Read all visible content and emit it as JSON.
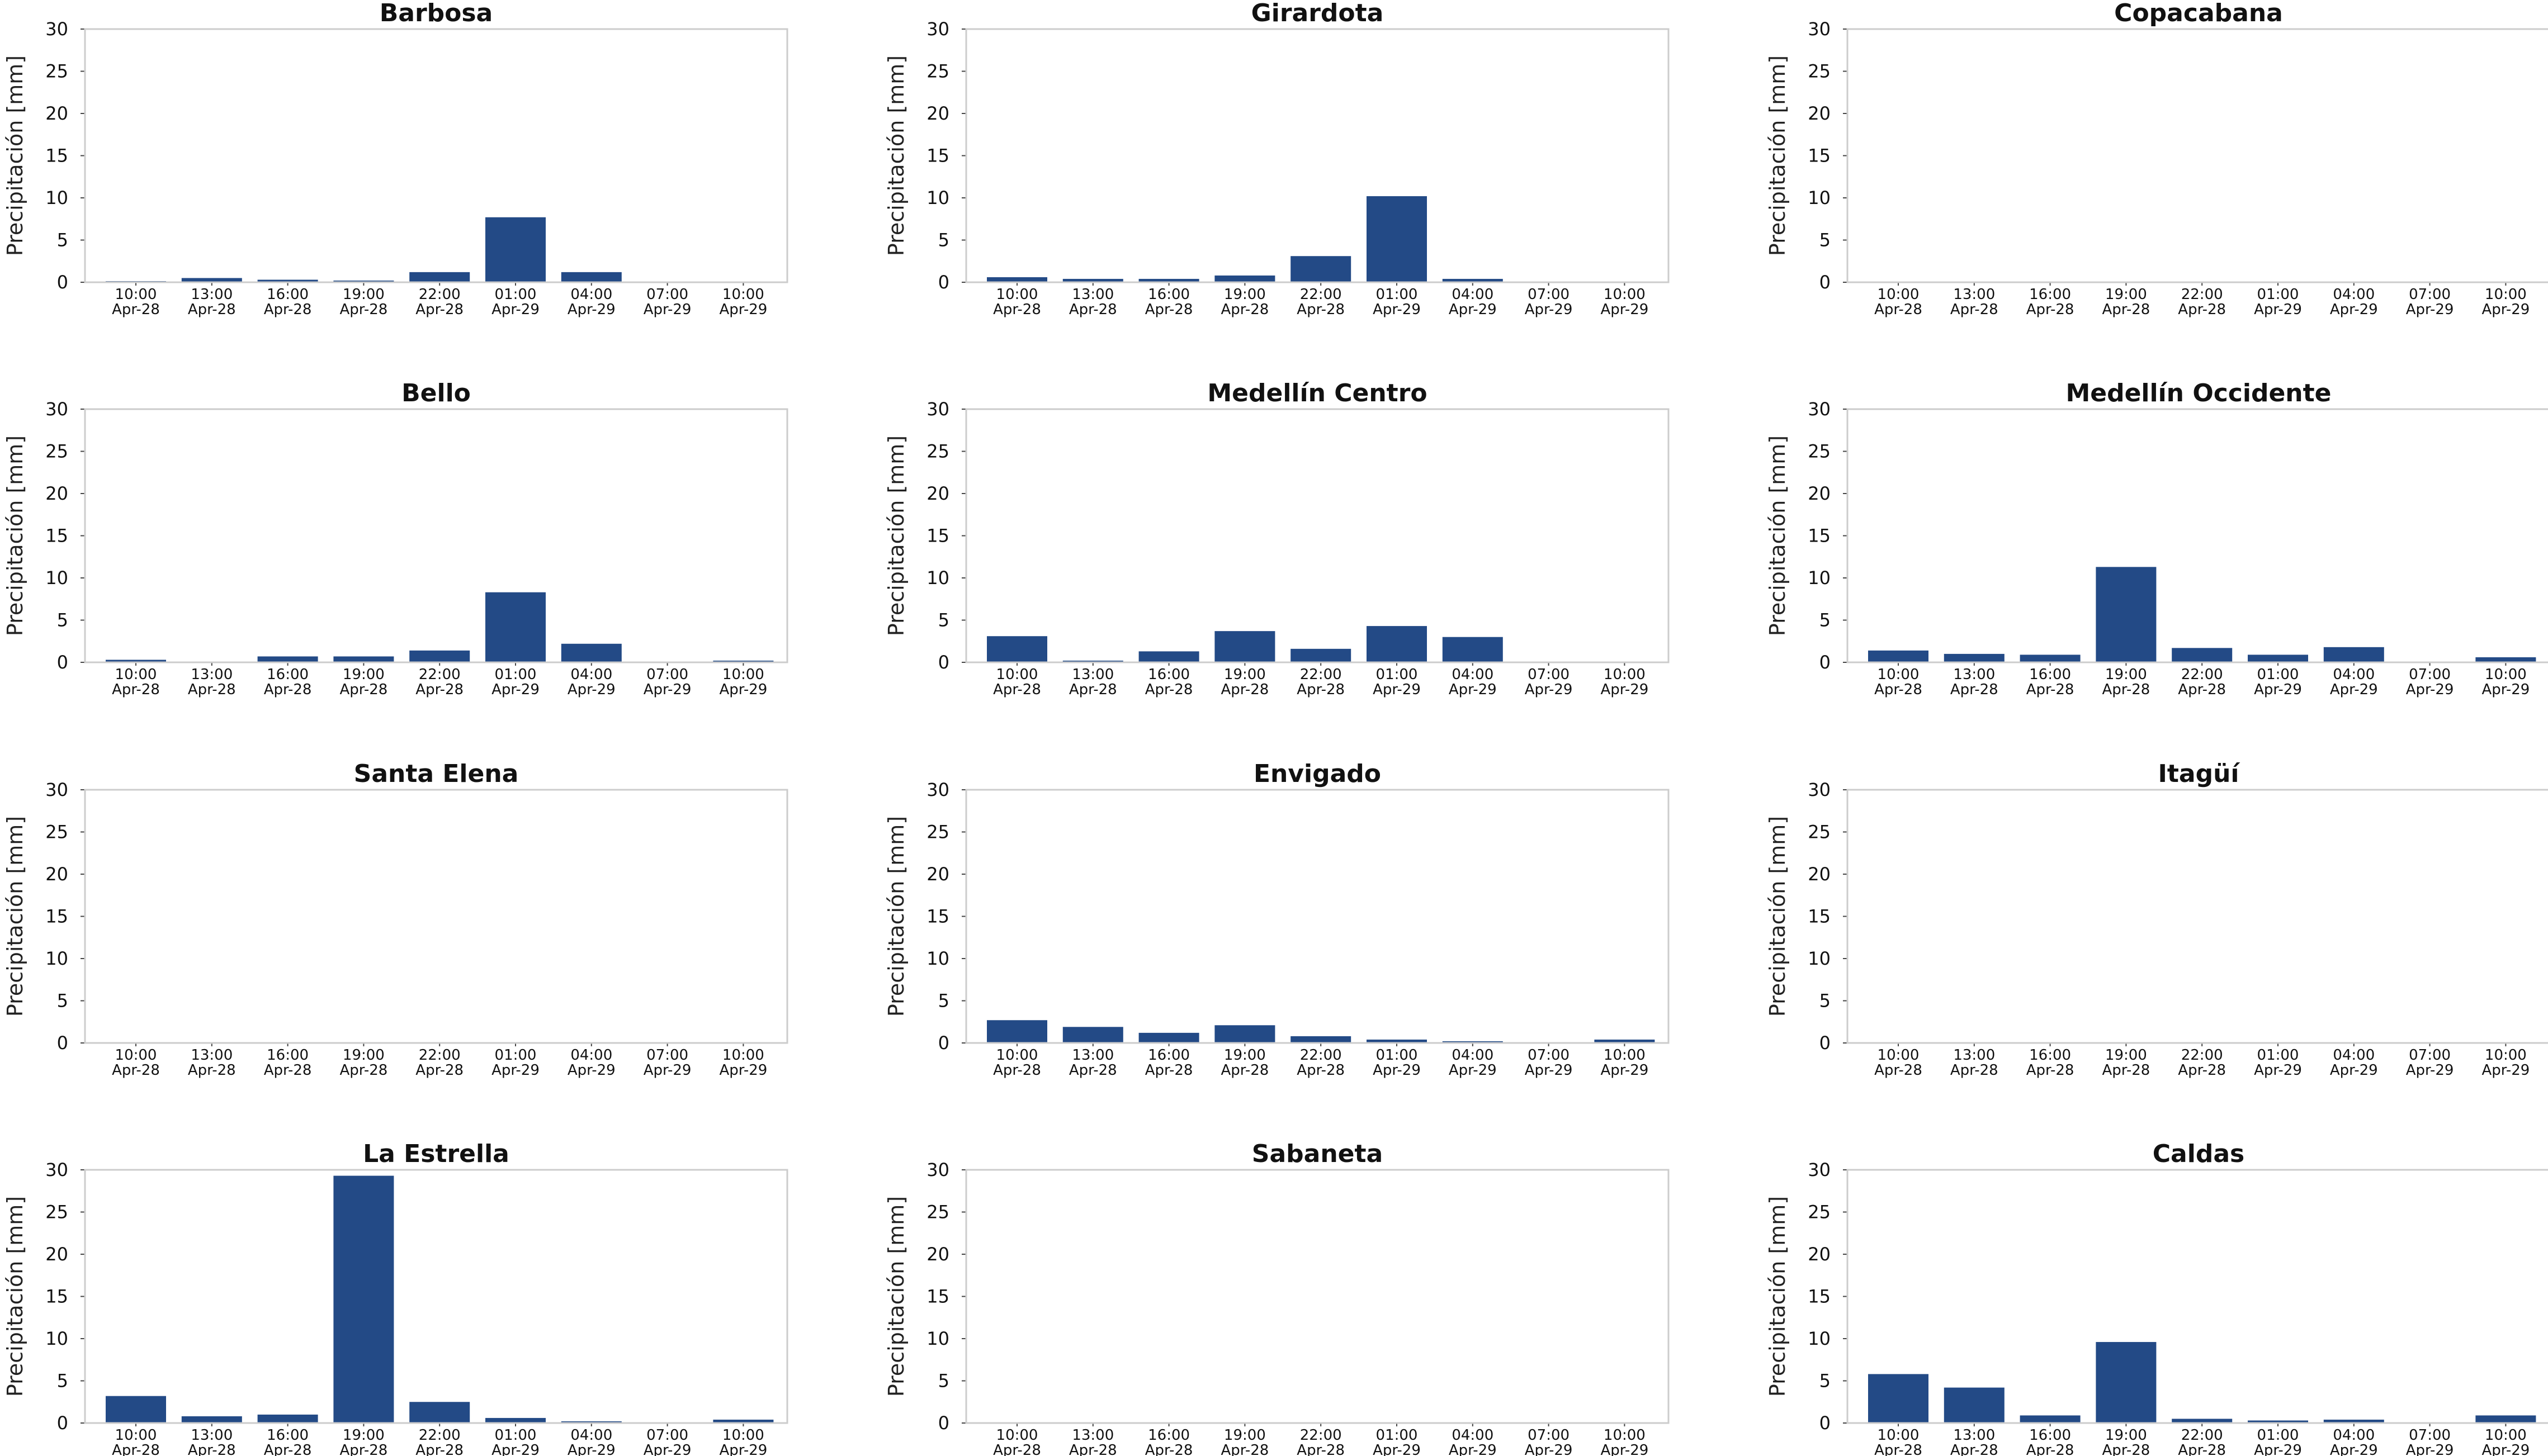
{
  "figure": {
    "ylabel": "Precipitación [mm]",
    "bar_color": "#234a86",
    "frame_color": "#cccccc",
    "text_color": "#111111"
  },
  "chart_data": [
    {
      "type": "bar",
      "title": "Barbosa",
      "ylabel": "Precipitación [mm]",
      "ylim": [
        0,
        30
      ],
      "yticks": [
        "0",
        "5",
        "10",
        "15",
        "20",
        "25",
        "30"
      ],
      "categories": [
        "10:00 Apr-28",
        "13:00 Apr-28",
        "16:00 Apr-28",
        "19:00 Apr-28",
        "22:00 Apr-28",
        "01:00 Apr-29",
        "04:00 Apr-29",
        "07:00 Apr-29",
        "10:00 Apr-29"
      ],
      "values": [
        0.1,
        0.5,
        0.3,
        0.2,
        1.2,
        7.7,
        1.2,
        0.0,
        0.0
      ]
    },
    {
      "type": "bar",
      "title": "Girardota",
      "ylabel": "Precipitación [mm]",
      "ylim": [
        0,
        30
      ],
      "yticks": [
        "0",
        "5",
        "10",
        "15",
        "20",
        "25",
        "30"
      ],
      "categories": [
        "10:00 Apr-28",
        "13:00 Apr-28",
        "16:00 Apr-28",
        "19:00 Apr-28",
        "22:00 Apr-28",
        "01:00 Apr-29",
        "04:00 Apr-29",
        "07:00 Apr-29",
        "10:00 Apr-29"
      ],
      "values": [
        0.6,
        0.4,
        0.4,
        0.8,
        3.1,
        10.2,
        0.4,
        0.0,
        0.0
      ]
    },
    {
      "type": "bar",
      "title": "Copacabana",
      "ylabel": "Precipitación [mm]",
      "ylim": [
        0,
        30
      ],
      "yticks": [
        "0",
        "5",
        "10",
        "15",
        "20",
        "25",
        "30"
      ],
      "categories": [
        "10:00 Apr-28",
        "13:00 Apr-28",
        "16:00 Apr-28",
        "19:00 Apr-28",
        "22:00 Apr-28",
        "01:00 Apr-29",
        "04:00 Apr-29",
        "07:00 Apr-29",
        "10:00 Apr-29"
      ],
      "values": [
        0,
        0,
        0,
        0,
        0,
        0,
        0,
        0,
        0
      ]
    },
    {
      "type": "bar",
      "title": "Bello",
      "ylabel": "Precipitación [mm]",
      "ylim": [
        0,
        30
      ],
      "yticks": [
        "0",
        "5",
        "10",
        "15",
        "20",
        "25",
        "30"
      ],
      "categories": [
        "10:00 Apr-28",
        "13:00 Apr-28",
        "16:00 Apr-28",
        "19:00 Apr-28",
        "22:00 Apr-28",
        "01:00 Apr-29",
        "04:00 Apr-29",
        "07:00 Apr-29",
        "10:00 Apr-29"
      ],
      "values": [
        0.3,
        0.0,
        0.7,
        0.7,
        1.4,
        8.3,
        2.2,
        0.0,
        0.2
      ]
    },
    {
      "type": "bar",
      "title": "Medellín Centro",
      "ylabel": "Precipitación [mm]",
      "ylim": [
        0,
        30
      ],
      "yticks": [
        "0",
        "5",
        "10",
        "15",
        "20",
        "25",
        "30"
      ],
      "categories": [
        "10:00 Apr-28",
        "13:00 Apr-28",
        "16:00 Apr-28",
        "19:00 Apr-28",
        "22:00 Apr-28",
        "01:00 Apr-29",
        "04:00 Apr-29",
        "07:00 Apr-29",
        "10:00 Apr-29"
      ],
      "values": [
        3.1,
        0.2,
        1.3,
        3.7,
        1.6,
        4.3,
        3.0,
        0.0,
        0.0
      ]
    },
    {
      "type": "bar",
      "title": "Medellín Occidente",
      "ylabel": "Precipitación [mm]",
      "ylim": [
        0,
        30
      ],
      "yticks": [
        "0",
        "5",
        "10",
        "15",
        "20",
        "25",
        "30"
      ],
      "categories": [
        "10:00 Apr-28",
        "13:00 Apr-28",
        "16:00 Apr-28",
        "19:00 Apr-28",
        "22:00 Apr-28",
        "01:00 Apr-29",
        "04:00 Apr-29",
        "07:00 Apr-29",
        "10:00 Apr-29"
      ],
      "values": [
        1.4,
        1.0,
        0.9,
        11.3,
        1.7,
        0.9,
        1.8,
        0.0,
        0.6
      ]
    },
    {
      "type": "bar",
      "title": "Santa Elena",
      "ylabel": "Precipitación [mm]",
      "ylim": [
        0,
        30
      ],
      "yticks": [
        "0",
        "5",
        "10",
        "15",
        "20",
        "25",
        "30"
      ],
      "categories": [
        "10:00 Apr-28",
        "13:00 Apr-28",
        "16:00 Apr-28",
        "19:00 Apr-28",
        "22:00 Apr-28",
        "01:00 Apr-29",
        "04:00 Apr-29",
        "07:00 Apr-29",
        "10:00 Apr-29"
      ],
      "values": [
        0,
        0,
        0,
        0,
        0,
        0,
        0,
        0,
        0
      ]
    },
    {
      "type": "bar",
      "title": "Envigado",
      "ylabel": "Precipitación [mm]",
      "ylim": [
        0,
        30
      ],
      "yticks": [
        "0",
        "5",
        "10",
        "15",
        "20",
        "25",
        "30"
      ],
      "categories": [
        "10:00 Apr-28",
        "13:00 Apr-28",
        "16:00 Apr-28",
        "19:00 Apr-28",
        "22:00 Apr-28",
        "01:00 Apr-29",
        "04:00 Apr-29",
        "07:00 Apr-29",
        "10:00 Apr-29"
      ],
      "values": [
        2.7,
        1.9,
        1.2,
        2.1,
        0.8,
        0.4,
        0.2,
        0.0,
        0.4
      ]
    },
    {
      "type": "bar",
      "title": "Itagüí",
      "ylabel": "Precipitación [mm]",
      "ylim": [
        0,
        30
      ],
      "yticks": [
        "0",
        "5",
        "10",
        "15",
        "20",
        "25",
        "30"
      ],
      "categories": [
        "10:00 Apr-28",
        "13:00 Apr-28",
        "16:00 Apr-28",
        "19:00 Apr-28",
        "22:00 Apr-28",
        "01:00 Apr-29",
        "04:00 Apr-29",
        "07:00 Apr-29",
        "10:00 Apr-29"
      ],
      "values": [
        0,
        0,
        0,
        0,
        0,
        0,
        0,
        0,
        0
      ]
    },
    {
      "type": "bar",
      "title": "La Estrella",
      "ylabel": "Precipitación [mm]",
      "ylim": [
        0,
        30
      ],
      "yticks": [
        "0",
        "5",
        "10",
        "15",
        "20",
        "25",
        "30"
      ],
      "categories": [
        "10:00 Apr-28",
        "13:00 Apr-28",
        "16:00 Apr-28",
        "19:00 Apr-28",
        "22:00 Apr-28",
        "01:00 Apr-29",
        "04:00 Apr-29",
        "07:00 Apr-29",
        "10:00 Apr-29"
      ],
      "values": [
        3.2,
        0.8,
        1.0,
        29.3,
        2.5,
        0.6,
        0.2,
        0.0,
        0.4
      ]
    },
    {
      "type": "bar",
      "title": "Sabaneta",
      "ylabel": "Precipitación [mm]",
      "ylim": [
        0,
        30
      ],
      "yticks": [
        "0",
        "5",
        "10",
        "15",
        "20",
        "25",
        "30"
      ],
      "categories": [
        "10:00 Apr-28",
        "13:00 Apr-28",
        "16:00 Apr-28",
        "19:00 Apr-28",
        "22:00 Apr-28",
        "01:00 Apr-29",
        "04:00 Apr-29",
        "07:00 Apr-29",
        "10:00 Apr-29"
      ],
      "values": [
        0,
        0,
        0,
        0,
        0,
        0,
        0,
        0,
        0
      ]
    },
    {
      "type": "bar",
      "title": "Caldas",
      "ylabel": "Precipitación [mm]",
      "ylim": [
        0,
        30
      ],
      "yticks": [
        "0",
        "5",
        "10",
        "15",
        "20",
        "25",
        "30"
      ],
      "categories": [
        "10:00 Apr-28",
        "13:00 Apr-28",
        "16:00 Apr-28",
        "19:00 Apr-28",
        "22:00 Apr-28",
        "01:00 Apr-29",
        "04:00 Apr-29",
        "07:00 Apr-29",
        "10:00 Apr-29"
      ],
      "values": [
        5.8,
        4.2,
        0.9,
        9.6,
        0.5,
        0.3,
        0.4,
        0.0,
        0.9
      ]
    }
  ]
}
